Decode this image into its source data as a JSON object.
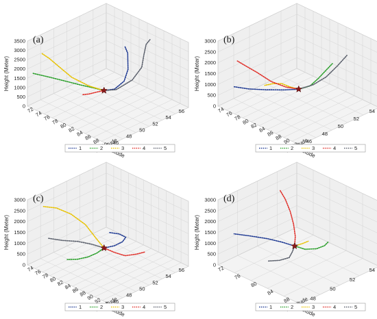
{
  "colors": {
    "1": "#1f3a93",
    "2": "#2ca02c",
    "3": "#e8c200",
    "4": "#e0302a",
    "5": "#5a5f6b",
    "pane": "#efefef",
    "grid": "#d4d4d4",
    "marker": "#8b1a1a"
  },
  "chart_data": [
    {
      "type": "line",
      "panel_label": "(a)",
      "xlabel": "Longitude",
      "ylabel": "Latitude",
      "zlabel": "Height (Meter)",
      "x_ticks": [
        "72",
        "74",
        "76",
        "78",
        "80",
        "82",
        "84",
        "86",
        "88",
        "90",
        "92"
      ],
      "y_ticks": [
        "44",
        "46",
        "48",
        "50",
        "52",
        "54",
        "56"
      ],
      "z_ticks": [
        "0",
        "500",
        "1000",
        "1500",
        "2000",
        "2500",
        "3000",
        "3500"
      ],
      "legend": [
        "1",
        "2",
        "3",
        "4",
        "5"
      ]
    },
    {
      "type": "line",
      "panel_label": "(b)",
      "xlabel": "Longitude",
      "ylabel": "Latitude",
      "zlabel": "Height (Meter)",
      "x_ticks": [
        "74",
        "76",
        "78",
        "80",
        "82",
        "84",
        "86",
        "88",
        "90",
        "92",
        "94"
      ],
      "y_ticks": [
        "44",
        "46",
        "48",
        "50",
        "52",
        "54"
      ],
      "z_ticks": [
        "0",
        "500",
        "1000",
        "1500",
        "2000",
        "2500",
        "3000"
      ],
      "legend": [
        "1",
        "2",
        "3",
        "4",
        "5"
      ]
    },
    {
      "type": "line",
      "panel_label": "(c)",
      "xlabel": "Longitude",
      "ylabel": "Latitude",
      "zlabel": "Height (Meter)",
      "x_ticks": [
        "74",
        "76",
        "78",
        "80",
        "82",
        "84",
        "86",
        "88",
        "90",
        "92",
        "94",
        "96"
      ],
      "y_ticks": [
        "44",
        "46",
        "48",
        "50",
        "52",
        "54",
        "56"
      ],
      "z_ticks": [
        "0",
        "500",
        "1000",
        "1500",
        "2000",
        "2500",
        "3000"
      ],
      "legend": [
        "1",
        "2",
        "3",
        "4",
        "5"
      ]
    },
    {
      "type": "line",
      "panel_label": "(d)",
      "xlabel": "Longitude",
      "ylabel": "Latitude",
      "zlabel": "Height (Meter)",
      "x_ticks": [
        "72",
        "76",
        "80",
        "84",
        "88",
        "92"
      ],
      "y_ticks": [
        "44",
        "48",
        "50",
        "52",
        "54"
      ],
      "z_ticks": [
        "0",
        "500",
        "1000",
        "1500",
        "2000",
        "2500",
        "3000"
      ],
      "legend": [
        "1",
        "2",
        "3",
        "4",
        "5"
      ]
    }
  ]
}
